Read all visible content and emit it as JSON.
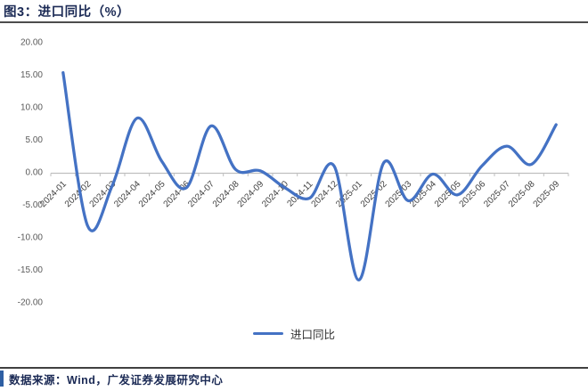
{
  "title": "图3：进口同比（%）",
  "legend": {
    "label": "进口同比"
  },
  "footer": {
    "text": "数据来源：Wind，广发证券发展研究中心"
  },
  "colors": {
    "line": "#4472C4",
    "title": "#1B2A55",
    "footer_text": "#1B2A55",
    "footer_bar": "#2E5FA3",
    "axis_line": "#BFBFBF",
    "ytick_text": "#595959",
    "xtick_text": "#404040",
    "legend_text": "#333333"
  },
  "chart_data": {
    "type": "line",
    "smooth": true,
    "title": "进口同比（%）",
    "xlabel": "",
    "ylabel": "",
    "grid": false,
    "legend_position": "bottom",
    "ylim": [
      -20,
      20
    ],
    "x": [
      "2024-01",
      "2024-02",
      "2024-03",
      "2024-04",
      "2024-05",
      "2024-06",
      "2024-07",
      "2024-08",
      "2024-09",
      "2024-10",
      "2024-11",
      "2024-12",
      "2025-01",
      "2025-02",
      "2025-03",
      "2025-04",
      "2025-05",
      "2025-06",
      "2025-07",
      "2025-08",
      "2025-09"
    ],
    "series": [
      {
        "name": "进口同比",
        "values": [
          15.4,
          -8.2,
          -1.9,
          8.4,
          1.8,
          -2.3,
          7.2,
          0.5,
          0.3,
          -2.3,
          -3.9,
          1.0,
          -16.5,
          1.5,
          -4.3,
          -0.2,
          -3.4,
          1.1,
          4.1,
          1.3,
          7.4
        ]
      }
    ],
    "yticks": [
      {
        "value": 20,
        "label": "20.00"
      },
      {
        "value": 15,
        "label": "15.00"
      },
      {
        "value": 10,
        "label": "10.00"
      },
      {
        "value": 5,
        "label": "5.00"
      },
      {
        "value": 0,
        "label": "0.00"
      },
      {
        "value": -5,
        "label": "-5.00"
      },
      {
        "value": -10,
        "label": "-10.00"
      },
      {
        "value": -15,
        "label": "-15.00"
      },
      {
        "value": -20,
        "label": "-20.00"
      }
    ]
  }
}
